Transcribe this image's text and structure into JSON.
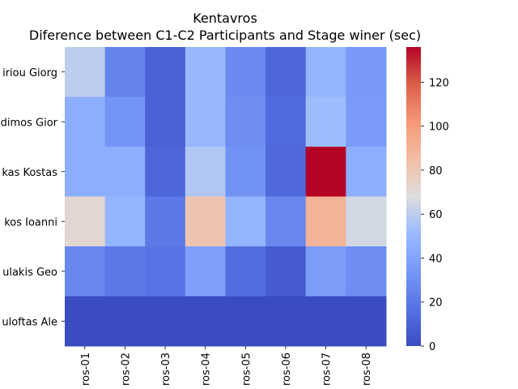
{
  "chart_data": {
    "type": "heatmap",
    "title": "Kentavros",
    "subtitle": "Diference between C1-C2 Participants and Stage winer (sec)",
    "rows": [
      "iriou Giorg",
      "dimos Gior",
      "kas Kostas",
      "kos Ioanni",
      "ulakis Geo",
      "uloftas Ale"
    ],
    "columns": [
      "ros-01",
      "ros-02",
      "ros-03",
      "ros-04",
      "ros-05",
      "ros-06",
      "ros-07",
      "ros-08"
    ],
    "values": [
      [
        60,
        25,
        10,
        50,
        28,
        12,
        48,
        35
      ],
      [
        45,
        33,
        10,
        50,
        30,
        14,
        52,
        36
      ],
      [
        45,
        45,
        12,
        57,
        32,
        13,
        136,
        45
      ],
      [
        72,
        48,
        20,
        82,
        48,
        27,
        90,
        65
      ],
      [
        27,
        20,
        18,
        38,
        15,
        7,
        37,
        30
      ],
      [
        0,
        0,
        0,
        0,
        0,
        0,
        0,
        0
      ]
    ],
    "colormap": "coolwarm",
    "vmin": 0,
    "vmax": 136,
    "colorbar_ticks": [
      0,
      20,
      40,
      60,
      80,
      100,
      120
    ]
  }
}
